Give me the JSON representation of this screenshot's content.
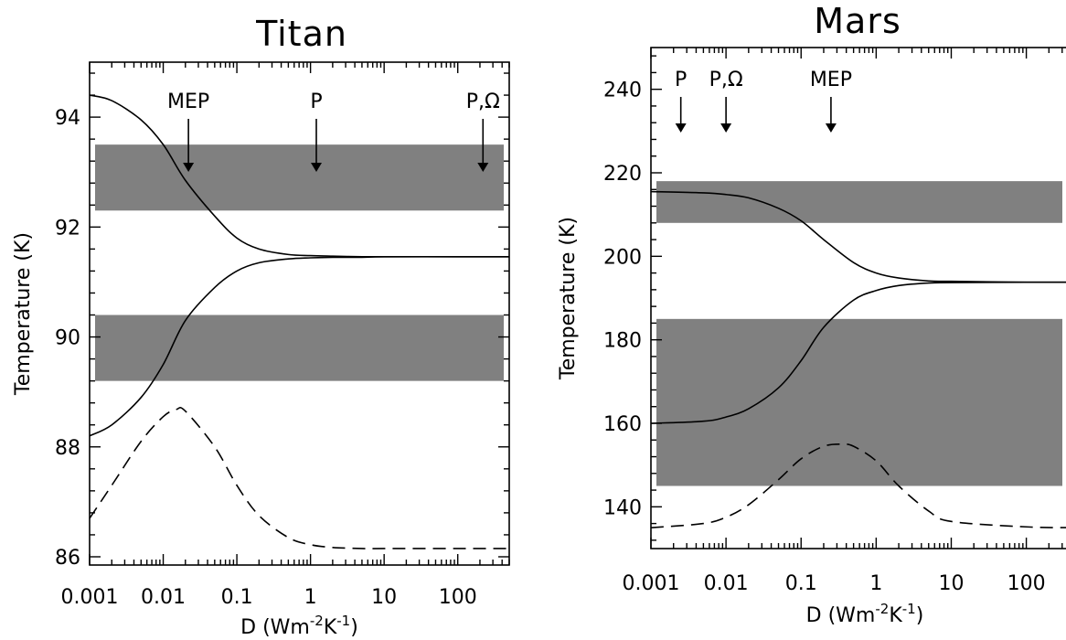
{
  "chart_data": [
    {
      "type": "line",
      "title": "Titan",
      "xlabel_prefix": "D  (Wm",
      "xlabel_exp1": "-2",
      "xlabel_mid": "K",
      "xlabel_exp2": "-1",
      "xlabel_suffix": ")",
      "ylabel": "Temperature (K)",
      "xscale": "log",
      "xlim": [
        0.001,
        500
      ],
      "ylim": [
        85.85,
        95.0
      ],
      "xticks": [
        {
          "v": 0.001,
          "label": "0.001"
        },
        {
          "v": 0.01,
          "label": "0.01"
        },
        {
          "v": 0.1,
          "label": "0.1"
        },
        {
          "v": 1,
          "label": "1"
        },
        {
          "v": 10,
          "label": "10"
        },
        {
          "v": 100,
          "label": "100"
        }
      ],
      "yticks": [
        {
          "v": 86,
          "label": "86"
        },
        {
          "v": 88,
          "label": "88"
        },
        {
          "v": 90,
          "label": "90"
        },
        {
          "v": 92,
          "label": "92"
        },
        {
          "v": 94,
          "label": "94"
        }
      ],
      "bands": [
        {
          "y0": 92.3,
          "y1": 93.5
        },
        {
          "y0": 89.2,
          "y1": 90.4
        }
      ],
      "series": [
        {
          "style": "solid",
          "x": [
            0.001,
            0.002,
            0.005,
            0.01,
            0.02,
            0.05,
            0.1,
            0.2,
            0.5,
            1,
            2,
            5,
            10,
            100,
            500
          ],
          "y": [
            94.4,
            94.3,
            93.95,
            93.5,
            92.85,
            92.2,
            91.8,
            91.6,
            91.5,
            91.48,
            91.47,
            91.46,
            91.46,
            91.46,
            91.46
          ]
        },
        {
          "style": "solid",
          "x": [
            0.001,
            0.002,
            0.005,
            0.01,
            0.02,
            0.05,
            0.1,
            0.2,
            0.5,
            1,
            2,
            5,
            10,
            100,
            500
          ],
          "y": [
            88.2,
            88.4,
            88.9,
            89.5,
            90.3,
            90.9,
            91.2,
            91.35,
            91.42,
            91.44,
            91.45,
            91.45,
            91.46,
            91.46,
            91.46
          ]
        },
        {
          "style": "dashed",
          "x": [
            0.001,
            0.002,
            0.005,
            0.01,
            0.015,
            0.02,
            0.05,
            0.1,
            0.2,
            0.5,
            1,
            2,
            5,
            10,
            100,
            500
          ],
          "y": [
            86.7,
            87.3,
            88.1,
            88.55,
            88.68,
            88.65,
            88.0,
            87.3,
            86.75,
            86.35,
            86.22,
            86.17,
            86.15,
            86.15,
            86.15,
            86.15
          ]
        }
      ],
      "annotations": [
        {
          "text": "MEP",
          "x": 0.022
        },
        {
          "text": "P",
          "x": 1.2
        },
        {
          "text": "P,Ω",
          "x": 220
        }
      ]
    },
    {
      "type": "line",
      "title": "Mars",
      "xlabel_prefix": "D  (Wm",
      "xlabel_exp1": "-2",
      "xlabel_mid": "K",
      "xlabel_exp2": "-1",
      "xlabel_suffix": ")",
      "ylabel": "Temperature (K)",
      "xscale": "log",
      "xlim": [
        0.001,
        500
      ],
      "ylim": [
        130,
        250
      ],
      "xticks": [
        {
          "v": 0.001,
          "label": "0.001"
        },
        {
          "v": 0.01,
          "label": "0.01"
        },
        {
          "v": 0.1,
          "label": "0.1"
        },
        {
          "v": 1,
          "label": "1"
        },
        {
          "v": 10,
          "label": "10"
        },
        {
          "v": 100,
          "label": "100"
        }
      ],
      "yticks": [
        {
          "v": 140,
          "label": "140"
        },
        {
          "v": 160,
          "label": "160"
        },
        {
          "v": 180,
          "label": "180"
        },
        {
          "v": 200,
          "label": "200"
        },
        {
          "v": 220,
          "label": "220"
        },
        {
          "v": 240,
          "label": "240"
        }
      ],
      "bands": [
        {
          "y0": 208,
          "y1": 218
        },
        {
          "y0": 145,
          "y1": 185
        }
      ],
      "series": [
        {
          "style": "solid",
          "x": [
            0.001,
            0.005,
            0.01,
            0.02,
            0.05,
            0.1,
            0.2,
            0.5,
            1,
            2,
            5,
            10,
            100,
            500
          ],
          "y": [
            215.5,
            215.2,
            214.8,
            214.0,
            211.5,
            208.5,
            204.0,
            198.5,
            196.0,
            194.8,
            194.1,
            194.0,
            193.8,
            193.8
          ]
        },
        {
          "style": "solid",
          "x": [
            0.001,
            0.005,
            0.01,
            0.02,
            0.05,
            0.1,
            0.2,
            0.5,
            1,
            2,
            5,
            10,
            100,
            500
          ],
          "y": [
            160.0,
            160.5,
            161.5,
            163.5,
            168.5,
            175.0,
            183.0,
            189.5,
            191.8,
            193.0,
            193.6,
            193.7,
            193.8,
            193.8
          ]
        },
        {
          "style": "dashed",
          "x": [
            0.001,
            0.005,
            0.01,
            0.02,
            0.05,
            0.1,
            0.2,
            0.35,
            0.5,
            1,
            2,
            5,
            10,
            100,
            500
          ],
          "y": [
            135.0,
            136.0,
            137.5,
            140.5,
            146.5,
            151.5,
            154.5,
            155.0,
            154.5,
            151.0,
            145.0,
            139.0,
            136.5,
            135.2,
            135.0
          ]
        }
      ],
      "annotations": [
        {
          "text": "P",
          "x": 0.0025
        },
        {
          "text": "P,Ω",
          "x": 0.01
        },
        {
          "text": "MEP",
          "x": 0.25
        }
      ]
    }
  ]
}
